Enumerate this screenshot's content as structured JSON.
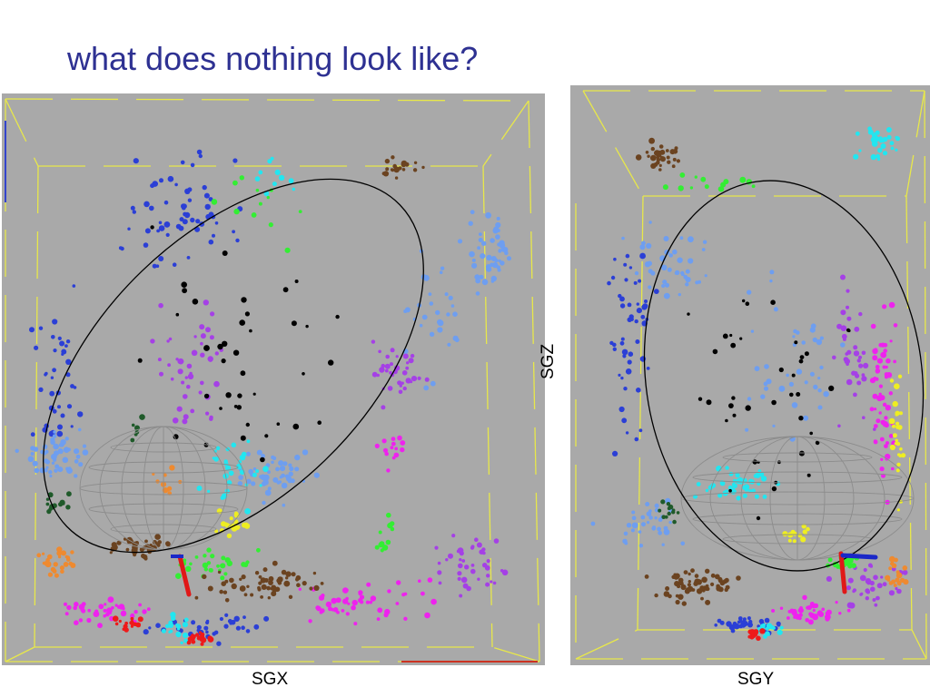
{
  "title": "what does nothing look like?",
  "chart_data": [
    {
      "type": "scatter",
      "panel": "left",
      "xlabel": "SGX",
      "ylabel": "",
      "grid": false,
      "background_color": "#a9a9a9",
      "series_colors": {
        "blue": "#2b3fd6",
        "light_blue": "#6e9ef0",
        "purple": "#a540e6",
        "magenta": "#ee22ee",
        "cyan": "#22e6f0",
        "green": "#33ee33",
        "dark_green": "#1f5a2a",
        "brown": "#6b4320",
        "orange": "#ee8a30",
        "yellow": "#eeee22",
        "red": "#ee1a1a",
        "black": "#000000"
      },
      "annotations": [
        "wireframe sphere",
        "ellipse outline",
        "yellow bounding box",
        "red axis stick"
      ]
    },
    {
      "type": "scatter",
      "panel": "right",
      "xlabel": "SGY",
      "ylabel": "SGZ",
      "grid": false,
      "background_color": "#a9a9a9",
      "annotations": [
        "wireframe sphere",
        "ellipse outline",
        "yellow bounding box",
        "red and blue axis sticks"
      ]
    }
  ]
}
